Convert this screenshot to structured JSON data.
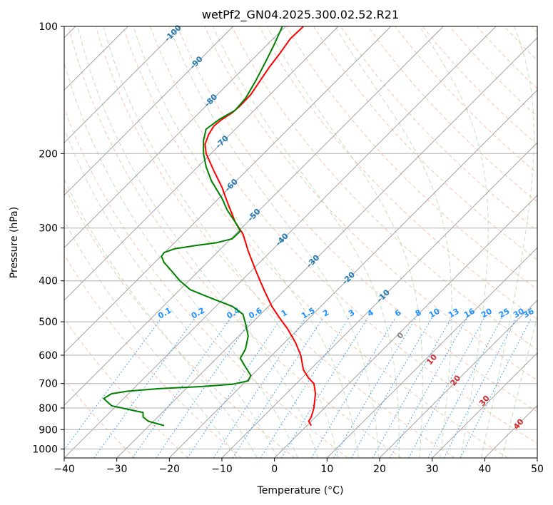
{
  "chart_data": {
    "type": "line",
    "title": "wetPf2_GN04.2025.300.02.52.R21",
    "xlabel": "Temperature (°C)",
    "ylabel": "Pressure (hPa)",
    "xlim": [
      -40,
      50
    ],
    "ylim": [
      1050,
      100
    ],
    "y_scale": "log",
    "x_ticks": [
      -40,
      -30,
      -20,
      -10,
      0,
      10,
      20,
      30,
      40,
      50
    ],
    "y_ticks": [
      100,
      200,
      300,
      400,
      500,
      600,
      700,
      800,
      900,
      1000
    ],
    "grid": true,
    "isotherm_labels": [
      -100,
      -90,
      -80,
      -70,
      -60,
      -50,
      -40,
      -30,
      -20,
      -10
    ],
    "mixing_ratio_labels": [
      "0.1",
      "0.2",
      "0.4",
      "0.6",
      "1",
      "1.5",
      "2",
      "3",
      "4",
      "6",
      "8",
      "10",
      "13",
      "16",
      "20",
      "25",
      "30",
      "36"
    ],
    "moist_adiabat_labels": [
      "0",
      "10",
      "20",
      "30",
      "40"
    ],
    "series": [
      {
        "color": "#ff0000",
        "points": [
          [
            7,
            880
          ],
          [
            6.5,
            860
          ],
          [
            7,
            840
          ],
          [
            7.5,
            800
          ],
          [
            7.8,
            740
          ],
          [
            7.5,
            700
          ],
          [
            6.5,
            680
          ],
          [
            5.5,
            650
          ],
          [
            5,
            600
          ],
          [
            4,
            560
          ],
          [
            2.5,
            520
          ],
          [
            1,
            490
          ],
          [
            -0.5,
            460
          ],
          [
            -2,
            420
          ],
          [
            -3.5,
            380
          ],
          [
            -5,
            340
          ],
          [
            -6,
            310
          ],
          [
            -7.5,
            290
          ],
          [
            -9,
            260
          ],
          [
            -10,
            240
          ],
          [
            -11.5,
            220
          ],
          [
            -13,
            200
          ],
          [
            -13.2,
            190
          ],
          [
            -12.5,
            180
          ],
          [
            -11.5,
            172
          ],
          [
            -10,
            166
          ],
          [
            -8,
            160
          ],
          [
            -6.5,
            154
          ],
          [
            -4.5,
            145
          ],
          [
            -3,
            136
          ],
          [
            -1,
            125
          ],
          [
            1,
            116
          ],
          [
            3,
            107
          ],
          [
            5.5,
            100
          ]
        ]
      },
      {
        "color": "#008000",
        "points": [
          [
            -21,
            880
          ],
          [
            -24,
            860
          ],
          [
            -25,
            840
          ],
          [
            -25,
            820
          ],
          [
            -28,
            805
          ],
          [
            -31,
            790
          ],
          [
            -32.5,
            760
          ],
          [
            -31,
            740
          ],
          [
            -28,
            730
          ],
          [
            -22,
            720
          ],
          [
            -14,
            712
          ],
          [
            -8,
            703
          ],
          [
            -5,
            690
          ],
          [
            -4.5,
            670
          ],
          [
            -5.5,
            640
          ],
          [
            -6.5,
            610
          ],
          [
            -5.5,
            580
          ],
          [
            -5,
            540
          ],
          [
            -5.5,
            505
          ],
          [
            -6,
            480
          ],
          [
            -8,
            460
          ],
          [
            -12,
            440
          ],
          [
            -16,
            420
          ],
          [
            -18,
            400
          ],
          [
            -19.5,
            380
          ],
          [
            -21,
            362
          ],
          [
            -21.5,
            350
          ],
          [
            -21,
            343
          ],
          [
            -19,
            336
          ],
          [
            -15,
            330
          ],
          [
            -11,
            325
          ],
          [
            -8,
            318
          ],
          [
            -6.5,
            305
          ],
          [
            -7.5,
            290
          ],
          [
            -9,
            272
          ],
          [
            -10,
            255
          ],
          [
            -12,
            232
          ],
          [
            -13,
            215
          ],
          [
            -13.5,
            200
          ],
          [
            -13.5,
            186
          ],
          [
            -13,
            175
          ],
          [
            -10.5,
            166
          ],
          [
            -7.5,
            158
          ],
          [
            -5.5,
            148
          ],
          [
            -3.5,
            134
          ],
          [
            -1.5,
            120
          ],
          [
            0,
            110
          ],
          [
            1.5,
            100
          ]
        ]
      }
    ]
  },
  "style": {
    "temperature_color": "#ff0000",
    "dewpoint_color": "#008000",
    "isotherm_label_color": "#1f77b4",
    "mixing_ratio_color": "#1e90ff",
    "moist_label_color": "#d62728",
    "grid_color": "#b0b0b0",
    "dry_adiabat_color": "#f4a582",
    "moist_adiabat_color": "#a6d3a0"
  }
}
